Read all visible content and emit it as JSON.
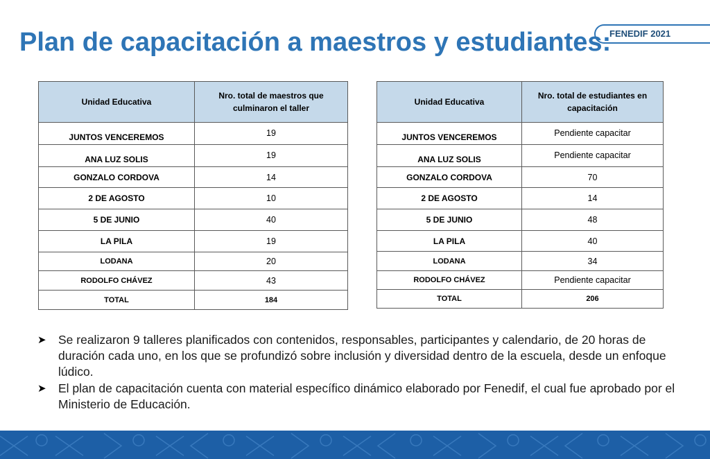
{
  "slide": {
    "title": "Plan de capacitación a maestros y estudiantes:",
    "badge": "FENEDIF 2021"
  },
  "teachers_table": {
    "headers": [
      "Unidad  Educativa",
      "Nro.  total  de maestros que culminaron el  taller"
    ],
    "rows": [
      {
        "name": "JUNTOS VENCEREMOS",
        "value": "19"
      },
      {
        "name": "ANA LUZ SOLIS",
        "value": "19"
      },
      {
        "name": "GONZALO CORDOVA",
        "value": "14"
      },
      {
        "name": "2 DE AGOSTO",
        "value": "10"
      },
      {
        "name": "5 DE JUNIO",
        "value": "40"
      },
      {
        "name": "LA PILA",
        "value": "19"
      },
      {
        "name": "LODANA",
        "value": "20"
      },
      {
        "name": "RODOLFO CHÁVEZ",
        "value": "43"
      },
      {
        "name": "TOTAL",
        "value": "184"
      }
    ]
  },
  "students_table": {
    "headers": [
      "Unidad  Educativa",
      "Nro.  total  de estudiantes en capacitación"
    ],
    "rows": [
      {
        "name": "JUNTOS VENCEREMOS",
        "value": "Pendiente  capacitar"
      },
      {
        "name": "ANA LUZ SOLIS",
        "value": "Pendiente  capacitar"
      },
      {
        "name": "GONZALO CORDOVA",
        "value": "70"
      },
      {
        "name": "2 DE AGOSTO",
        "value": "14"
      },
      {
        "name": "5 DE JUNIO",
        "value": "48"
      },
      {
        "name": "LA PILA",
        "value": "40"
      },
      {
        "name": "LODANA",
        "value": "34"
      },
      {
        "name": "RODOLFO CHÁVEZ",
        "value": "Pendiente  capacitar"
      },
      {
        "name": "TOTAL",
        "value": "206"
      }
    ]
  },
  "bullets": [
    "Se realizaron 9 talleres planificados con contenidos, responsables, participantes y calendario, de 20 horas de duración cada uno, en los que se profundizó sobre inclusión y diversidad dentro de la escuela, desde un enfoque lúdico.",
    "El plan de capacitación cuenta con material específico dinámico elaborado por Fenedif, el cual fue aprobado por el Ministerio de Educación."
  ],
  "colors": {
    "title": "#2e75b6",
    "header_fill": "#c5d9ea",
    "footer": "#1d5fa6"
  },
  "icons": {
    "bullet": "arrow-bullet-icon"
  }
}
